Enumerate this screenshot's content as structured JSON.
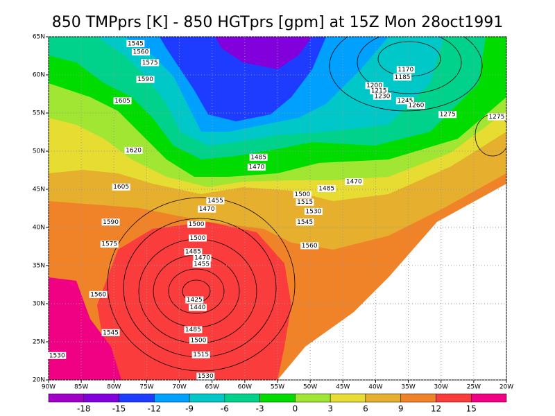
{
  "chart_data": {
    "type": "map",
    "title": "850 TMPprs [K] - 850 HGTprs [gpm] at 15Z Mon 28oct1991",
    "xlim": [
      -90,
      -20
    ],
    "ylim": [
      20,
      65
    ],
    "xticks": [
      {
        "value": -90,
        "label": "90W"
      },
      {
        "value": -85,
        "label": "85W"
      },
      {
        "value": -80,
        "label": "80W"
      },
      {
        "value": -75,
        "label": "75W"
      },
      {
        "value": -70,
        "label": "70W"
      },
      {
        "value": -65,
        "label": "65W"
      },
      {
        "value": -60,
        "label": "60W"
      },
      {
        "value": -55,
        "label": "55W"
      },
      {
        "value": -50,
        "label": "50W"
      },
      {
        "value": -45,
        "label": "45W"
      },
      {
        "value": -40,
        "label": "40W"
      },
      {
        "value": -35,
        "label": "35W"
      },
      {
        "value": -30,
        "label": "30W"
      },
      {
        "value": -25,
        "label": "25W"
      },
      {
        "value": -20,
        "label": "20W"
      }
    ],
    "yticks": [
      {
        "value": 20,
        "label": "20N"
      },
      {
        "value": 25,
        "label": "25N"
      },
      {
        "value": 30,
        "label": "30N"
      },
      {
        "value": 35,
        "label": "35N"
      },
      {
        "value": 40,
        "label": "40N"
      },
      {
        "value": 45,
        "label": "45N"
      },
      {
        "value": 50,
        "label": "50N"
      },
      {
        "value": 55,
        "label": "55N"
      },
      {
        "value": 60,
        "label": "60N"
      },
      {
        "value": 65,
        "label": "65N"
      }
    ],
    "grid": true,
    "colorbar": {
      "levels": [
        -18,
        -15,
        -12,
        -9,
        -6,
        -3,
        0,
        3,
        6,
        9,
        12,
        15
      ],
      "colors": [
        "#a000c8",
        "#8200dc",
        "#1e3cff",
        "#00a0ff",
        "#00c8c8",
        "#00d28c",
        "#00dc00",
        "#a0e632",
        "#e6dc32",
        "#e6af2d",
        "#f08228",
        "#fa3c3c",
        "#f00082"
      ]
    },
    "contour_labels": [
      {
        "x": -76.7,
        "y": 64.1,
        "value": 1545
      },
      {
        "x": -75.9,
        "y": 63.0,
        "value": 1560
      },
      {
        "x": -74.5,
        "y": 61.6,
        "value": 1575
      },
      {
        "x": -75.2,
        "y": 59.4,
        "value": 1590
      },
      {
        "x": -78.7,
        "y": 56.6,
        "value": 1605
      },
      {
        "x": -77.0,
        "y": 50.1,
        "value": 1620
      },
      {
        "x": -78.9,
        "y": 45.3,
        "value": 1605
      },
      {
        "x": -80.5,
        "y": 40.7,
        "value": 1590
      },
      {
        "x": -80.7,
        "y": 37.8,
        "value": 1575
      },
      {
        "x": -82.4,
        "y": 31.2,
        "value": 1560
      },
      {
        "x": -80.5,
        "y": 26.2,
        "value": 1545
      },
      {
        "x": -88.7,
        "y": 23.2,
        "value": 1530
      },
      {
        "x": -35.4,
        "y": 60.7,
        "value": 1170
      },
      {
        "x": -35.9,
        "y": 59.7,
        "value": 1185
      },
      {
        "x": -40.2,
        "y": 58.6,
        "value": 1200
      },
      {
        "x": -39.5,
        "y": 57.9,
        "value": 1215
      },
      {
        "x": -39.0,
        "y": 57.2,
        "value": 1230
      },
      {
        "x": -35.5,
        "y": 56.6,
        "value": 1245
      },
      {
        "x": -33.8,
        "y": 56.0,
        "value": 1260
      },
      {
        "x": -29.0,
        "y": 54.8,
        "value": 1275
      },
      {
        "x": -21.5,
        "y": 54.5,
        "value": 1275
      },
      {
        "x": -57.9,
        "y": 49.2,
        "value": 1485
      },
      {
        "x": -58.2,
        "y": 47.9,
        "value": 1470
      },
      {
        "x": -43.3,
        "y": 46.0,
        "value": 1470
      },
      {
        "x": -47.5,
        "y": 45.1,
        "value": 1485
      },
      {
        "x": -51.2,
        "y": 44.3,
        "value": 1500
      },
      {
        "x": -50.8,
        "y": 43.3,
        "value": 1515
      },
      {
        "x": -49.5,
        "y": 42.1,
        "value": 1530
      },
      {
        "x": -50.8,
        "y": 40.7,
        "value": 1545
      },
      {
        "x": -50.1,
        "y": 37.6,
        "value": 1560
      },
      {
        "x": -64.5,
        "y": 43.5,
        "value": 1455
      },
      {
        "x": -65.8,
        "y": 42.4,
        "value": 1470
      },
      {
        "x": -67.4,
        "y": 40.4,
        "value": 1500
      },
      {
        "x": -67.2,
        "y": 38.6,
        "value": 1500
      },
      {
        "x": -67.9,
        "y": 36.8,
        "value": 1485
      },
      {
        "x": -66.5,
        "y": 36.0,
        "value": 1470
      },
      {
        "x": -66.6,
        "y": 35.2,
        "value": 1455
      },
      {
        "x": -67.7,
        "y": 30.5,
        "value": 1425
      },
      {
        "x": -67.2,
        "y": 29.5,
        "value": 1440
      },
      {
        "x": -67.9,
        "y": 26.6,
        "value": 1485
      },
      {
        "x": -67.1,
        "y": 25.2,
        "value": 1500
      },
      {
        "x": -66.7,
        "y": 23.3,
        "value": 1515
      },
      {
        "x": -66.0,
        "y": 20.5,
        "value": 1530
      }
    ]
  }
}
